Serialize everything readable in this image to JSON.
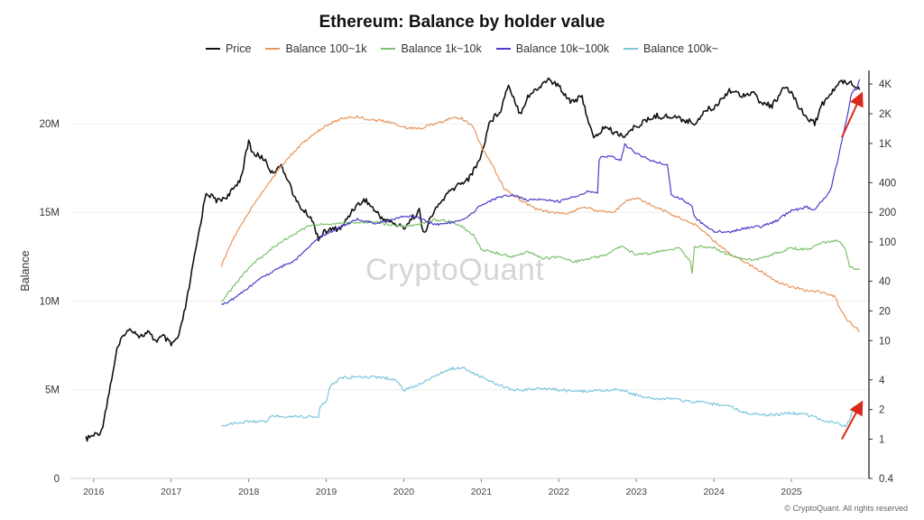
{
  "chart_data": {
    "type": "line",
    "title": "Ethereum: Balance by holder value",
    "ylabel": "Balance",
    "watermark": "CryptoQuant",
    "credit": "© CryptoQuant. All rights reserved",
    "x_ticks": [
      "2016",
      "2017",
      "2018",
      "2019",
      "2020",
      "2021",
      "2022",
      "2023",
      "2024",
      "2025"
    ],
    "left_axis": {
      "range": [
        0,
        23000000
      ],
      "ticks": [
        0,
        5000000,
        10000000,
        15000000,
        20000000
      ],
      "tick_labels": [
        "0",
        "5M",
        "10M",
        "15M",
        "20M"
      ]
    },
    "right_axis": {
      "scale": "log",
      "range": [
        0.4,
        5500
      ],
      "ticks": [
        0.4,
        1,
        2,
        4,
        10,
        20,
        40,
        100,
        200,
        400,
        1000,
        2000,
        4000
      ],
      "tick_labels": [
        "0.4",
        "1",
        "2",
        "4",
        "10",
        "20",
        "40",
        "100",
        "200",
        "400",
        "1K",
        "2K",
        "4K"
      ]
    },
    "series": [
      {
        "name": "Price",
        "color": "#111111",
        "axis": "right",
        "points": [
          [
            2015.9,
            1.0
          ],
          [
            2016.1,
            1.2
          ],
          [
            2016.2,
            3.0
          ],
          [
            2016.3,
            8
          ],
          [
            2016.4,
            12
          ],
          [
            2016.5,
            13
          ],
          [
            2016.6,
            11
          ],
          [
            2016.7,
            12
          ],
          [
            2016.8,
            10
          ],
          [
            2016.9,
            11
          ],
          [
            2017.0,
            9
          ],
          [
            2017.1,
            11
          ],
          [
            2017.2,
            25
          ],
          [
            2017.3,
            70
          ],
          [
            2017.45,
            320
          ],
          [
            2017.6,
            260
          ],
          [
            2017.75,
            300
          ],
          [
            2017.9,
            450
          ],
          [
            2018.0,
            1050
          ],
          [
            2018.05,
            800
          ],
          [
            2018.2,
            700
          ],
          [
            2018.3,
            500
          ],
          [
            2018.4,
            600
          ],
          [
            2018.5,
            450
          ],
          [
            2018.6,
            270
          ],
          [
            2018.7,
            210
          ],
          [
            2018.8,
            180
          ],
          [
            2018.9,
            110
          ],
          [
            2019.0,
            130
          ],
          [
            2019.2,
            140
          ],
          [
            2019.35,
            220
          ],
          [
            2019.5,
            270
          ],
          [
            2019.7,
            180
          ],
          [
            2019.9,
            150
          ],
          [
            2020.0,
            140
          ],
          [
            2020.2,
            210
          ],
          [
            2020.25,
            120
          ],
          [
            2020.4,
            210
          ],
          [
            2020.55,
            300
          ],
          [
            2020.7,
            380
          ],
          [
            2020.85,
            450
          ],
          [
            2021.0,
            750
          ],
          [
            2021.1,
            1600
          ],
          [
            2021.25,
            2200
          ],
          [
            2021.35,
            4000
          ],
          [
            2021.5,
            2000
          ],
          [
            2021.6,
            3000
          ],
          [
            2021.75,
            3700
          ],
          [
            2021.85,
            4500
          ],
          [
            2022.0,
            3800
          ],
          [
            2022.15,
            2700
          ],
          [
            2022.3,
            2900
          ],
          [
            2022.45,
            1100
          ],
          [
            2022.6,
            1500
          ],
          [
            2022.7,
            1300
          ],
          [
            2022.85,
            1200
          ],
          [
            2023.0,
            1500
          ],
          [
            2023.25,
            1900
          ],
          [
            2023.5,
            1850
          ],
          [
            2023.75,
            1600
          ],
          [
            2023.9,
            2200
          ],
          [
            2024.0,
            2300
          ],
          [
            2024.2,
            3500
          ],
          [
            2024.35,
            3100
          ],
          [
            2024.5,
            3300
          ],
          [
            2024.6,
            2600
          ],
          [
            2024.75,
            2400
          ],
          [
            2024.9,
            3600
          ],
          [
            2025.0,
            3300
          ],
          [
            2025.15,
            2000
          ],
          [
            2025.3,
            1600
          ],
          [
            2025.4,
            2500
          ],
          [
            2025.55,
            3500
          ],
          [
            2025.65,
            4300
          ],
          [
            2025.75,
            4200
          ],
          [
            2025.85,
            3800
          ],
          [
            2025.88,
            3500
          ]
        ]
      },
      {
        "name": "Balance 100~1k",
        "color": "#e8955a",
        "axis": "left",
        "points": [
          [
            2017.65,
            12000000
          ],
          [
            2017.8,
            13500000
          ],
          [
            2018.0,
            15000000
          ],
          [
            2018.2,
            16300000
          ],
          [
            2018.4,
            17500000
          ],
          [
            2018.6,
            18500000
          ],
          [
            2018.8,
            19300000
          ],
          [
            2019.0,
            19900000
          ],
          [
            2019.2,
            20300000
          ],
          [
            2019.4,
            20400000
          ],
          [
            2019.6,
            20200000
          ],
          [
            2019.8,
            20100000
          ],
          [
            2020.0,
            19800000
          ],
          [
            2020.2,
            19700000
          ],
          [
            2020.4,
            20000000
          ],
          [
            2020.6,
            20300000
          ],
          [
            2020.75,
            20300000
          ],
          [
            2020.9,
            19800000
          ],
          [
            2021.0,
            18700000
          ],
          [
            2021.15,
            17600000
          ],
          [
            2021.3,
            16300000
          ],
          [
            2021.5,
            15700000
          ],
          [
            2021.7,
            15200000
          ],
          [
            2021.9,
            15000000
          ],
          [
            2022.1,
            14900000
          ],
          [
            2022.3,
            15300000
          ],
          [
            2022.5,
            15100000
          ],
          [
            2022.7,
            15000000
          ],
          [
            2022.9,
            15700000
          ],
          [
            2023.0,
            15800000
          ],
          [
            2023.2,
            15400000
          ],
          [
            2023.4,
            15000000
          ],
          [
            2023.6,
            14600000
          ],
          [
            2023.8,
            14200000
          ],
          [
            2024.0,
            13400000
          ],
          [
            2024.2,
            12700000
          ],
          [
            2024.4,
            12200000
          ],
          [
            2024.6,
            11700000
          ],
          [
            2024.8,
            11100000
          ],
          [
            2025.0,
            10800000
          ],
          [
            2025.2,
            10600000
          ],
          [
            2025.4,
            10500000
          ],
          [
            2025.55,
            10300000
          ],
          [
            2025.7,
            9000000
          ],
          [
            2025.88,
            8300000
          ]
        ]
      },
      {
        "name": "Balance 1k~10k",
        "color": "#7dc06d",
        "axis": "left",
        "points": [
          [
            2017.65,
            10000000
          ],
          [
            2017.8,
            10800000
          ],
          [
            2018.0,
            11900000
          ],
          [
            2018.2,
            12600000
          ],
          [
            2018.4,
            13300000
          ],
          [
            2018.6,
            13800000
          ],
          [
            2018.8,
            14300000
          ],
          [
            2019.0,
            14300000
          ],
          [
            2019.2,
            14400000
          ],
          [
            2019.4,
            14400000
          ],
          [
            2019.6,
            14500000
          ],
          [
            2019.8,
            14300000
          ],
          [
            2020.0,
            14200000
          ],
          [
            2020.2,
            14300000
          ],
          [
            2020.4,
            14600000
          ],
          [
            2020.6,
            14500000
          ],
          [
            2020.75,
            14200000
          ],
          [
            2020.9,
            13700000
          ],
          [
            2021.0,
            12900000
          ],
          [
            2021.2,
            12700000
          ],
          [
            2021.4,
            12500000
          ],
          [
            2021.6,
            12800000
          ],
          [
            2021.8,
            12400000
          ],
          [
            2022.0,
            12500000
          ],
          [
            2022.2,
            12200000
          ],
          [
            2022.4,
            12400000
          ],
          [
            2022.6,
            12600000
          ],
          [
            2022.8,
            13100000
          ],
          [
            2023.0,
            12600000
          ],
          [
            2023.2,
            12700000
          ],
          [
            2023.4,
            12900000
          ],
          [
            2023.55,
            13000000
          ],
          [
            2023.7,
            12200000
          ],
          [
            2023.72,
            11600000
          ],
          [
            2023.75,
            13100000
          ],
          [
            2024.0,
            13000000
          ],
          [
            2024.2,
            12600000
          ],
          [
            2024.4,
            12300000
          ],
          [
            2024.6,
            12400000
          ],
          [
            2024.8,
            12700000
          ],
          [
            2025.0,
            13000000
          ],
          [
            2025.2,
            12900000
          ],
          [
            2025.4,
            13300000
          ],
          [
            2025.6,
            13400000
          ],
          [
            2025.7,
            12900000
          ],
          [
            2025.75,
            11900000
          ],
          [
            2025.88,
            11800000
          ]
        ]
      },
      {
        "name": "Balance 10k~100k",
        "color": "#4b3cc8",
        "axis": "left",
        "points": [
          [
            2017.65,
            9800000
          ],
          [
            2017.8,
            10100000
          ],
          [
            2018.0,
            10800000
          ],
          [
            2018.2,
            11400000
          ],
          [
            2018.4,
            11900000
          ],
          [
            2018.6,
            12300000
          ],
          [
            2018.8,
            13200000
          ],
          [
            2019.0,
            13800000
          ],
          [
            2019.2,
            14200000
          ],
          [
            2019.4,
            14600000
          ],
          [
            2019.6,
            14400000
          ],
          [
            2019.8,
            14500000
          ],
          [
            2020.0,
            14800000
          ],
          [
            2020.2,
            14700000
          ],
          [
            2020.4,
            14300000
          ],
          [
            2020.6,
            14400000
          ],
          [
            2020.8,
            14700000
          ],
          [
            2021.0,
            15400000
          ],
          [
            2021.2,
            15800000
          ],
          [
            2021.4,
            16000000
          ],
          [
            2021.6,
            15700000
          ],
          [
            2021.8,
            15700000
          ],
          [
            2022.0,
            15600000
          ],
          [
            2022.2,
            15900000
          ],
          [
            2022.4,
            16200000
          ],
          [
            2022.5,
            16100000
          ],
          [
            2022.52,
            18000000
          ],
          [
            2022.55,
            18200000
          ],
          [
            2022.7,
            18100000
          ],
          [
            2022.8,
            17900000
          ],
          [
            2022.85,
            18800000
          ],
          [
            2022.95,
            18500000
          ],
          [
            2023.0,
            18300000
          ],
          [
            2023.2,
            17900000
          ],
          [
            2023.4,
            17700000
          ],
          [
            2023.45,
            16000000
          ],
          [
            2023.6,
            15700000
          ],
          [
            2023.72,
            15300000
          ],
          [
            2023.75,
            14700000
          ],
          [
            2024.0,
            13900000
          ],
          [
            2024.2,
            13900000
          ],
          [
            2024.4,
            14100000
          ],
          [
            2024.6,
            14200000
          ],
          [
            2024.8,
            14500000
          ],
          [
            2025.0,
            15100000
          ],
          [
            2025.2,
            15300000
          ],
          [
            2025.3,
            15100000
          ],
          [
            2025.4,
            15700000
          ],
          [
            2025.5,
            16200000
          ],
          [
            2025.6,
            18000000
          ],
          [
            2025.7,
            20000000
          ],
          [
            2025.78,
            21800000
          ],
          [
            2025.85,
            22000000
          ],
          [
            2025.88,
            22500000
          ]
        ]
      },
      {
        "name": "Balance 100k~",
        "color": "#7cc6dc",
        "axis": "left",
        "points": [
          [
            2017.65,
            3000000
          ],
          [
            2017.8,
            3100000
          ],
          [
            2018.0,
            3200000
          ],
          [
            2018.25,
            3200000
          ],
          [
            2018.27,
            3500000
          ],
          [
            2018.5,
            3500000
          ],
          [
            2018.9,
            3500000
          ],
          [
            2018.92,
            4100000
          ],
          [
            2019.0,
            4300000
          ],
          [
            2019.05,
            5200000
          ],
          [
            2019.2,
            5700000
          ],
          [
            2019.4,
            5700000
          ],
          [
            2019.6,
            5700000
          ],
          [
            2019.9,
            5600000
          ],
          [
            2020.0,
            5000000
          ],
          [
            2020.2,
            5300000
          ],
          [
            2020.4,
            5800000
          ],
          [
            2020.6,
            6200000
          ],
          [
            2020.8,
            6200000
          ],
          [
            2021.0,
            5700000
          ],
          [
            2021.2,
            5300000
          ],
          [
            2021.4,
            5000000
          ],
          [
            2021.6,
            5000000
          ],
          [
            2021.8,
            5100000
          ],
          [
            2022.0,
            5000000
          ],
          [
            2022.2,
            4900000
          ],
          [
            2022.4,
            4900000
          ],
          [
            2022.6,
            5000000
          ],
          [
            2022.8,
            5000000
          ],
          [
            2023.0,
            4700000
          ],
          [
            2023.2,
            4500000
          ],
          [
            2023.4,
            4500000
          ],
          [
            2023.6,
            4400000
          ],
          [
            2023.8,
            4300000
          ],
          [
            2024.0,
            4200000
          ],
          [
            2024.2,
            4100000
          ],
          [
            2024.4,
            3700000
          ],
          [
            2024.6,
            3600000
          ],
          [
            2024.8,
            3600000
          ],
          [
            2025.0,
            3700000
          ],
          [
            2025.2,
            3600000
          ],
          [
            2025.4,
            3300000
          ],
          [
            2025.5,
            3200000
          ],
          [
            2025.6,
            3100000
          ],
          [
            2025.7,
            2900000
          ],
          [
            2025.75,
            3300000
          ],
          [
            2025.8,
            4000000
          ],
          [
            2025.88,
            4100000
          ]
        ]
      }
    ],
    "annotations": [
      {
        "type": "arrow",
        "color": "#d9291c",
        "from": [
          2025.65,
          1150
        ],
        "to": [
          2025.9,
          3100
        ],
        "axis": "right"
      },
      {
        "type": "arrow",
        "color": "#d9291c",
        "from": [
          2025.65,
          1.0
        ],
        "to": [
          2025.9,
          2.3
        ],
        "axis": "right"
      }
    ]
  }
}
